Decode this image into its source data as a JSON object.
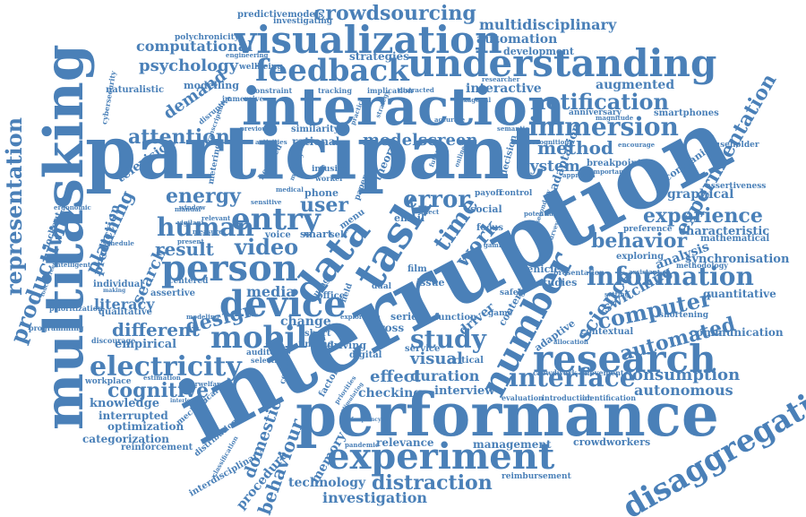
{
  "colors": {
    "word": "#4a80b8",
    "background": "#ffffff"
  },
  "words": [
    "interruption",
    "participant",
    "performance",
    "multitasking",
    "interaction",
    "understanding",
    "visualization",
    "experiment",
    "research",
    "number",
    "device",
    "person",
    "data",
    "task",
    "feedback",
    "crowdsourcing",
    "immersion",
    "information",
    "electricity",
    "mobile",
    "disaggregation",
    "experimentation",
    "representation",
    "productivity",
    "planning",
    "energy",
    "human",
    "entry",
    "error",
    "user",
    "time",
    "work",
    "attention",
    "method",
    "system",
    "notification",
    "behavior",
    "experience",
    "interface",
    "computer",
    "automated",
    "study",
    "design",
    "result",
    "video",
    "cognitive",
    "distraction",
    "technology",
    "investigation",
    "behaviour",
    "domestic",
    "procedure",
    "consumption",
    "autonomous",
    "psychology",
    "computational",
    "modelscreen",
    "automation",
    "multidisciplinary",
    "predictivemodels",
    "polychronicity",
    "investigating",
    "augmented",
    "development",
    "interactive",
    "analysis",
    "synchronisation",
    "characteristic",
    "quantitative",
    "communication",
    "science",
    "switching",
    "visual",
    "effect",
    "duration",
    "interview",
    "checking",
    "memory",
    "management",
    "relevance",
    "crowdworkers",
    "reimbursement",
    "categorization",
    "optimization",
    "interrupted",
    "knowledge",
    "empirical",
    "different",
    "literacy",
    "search",
    "media",
    "change",
    "short",
    "driving",
    "finding",
    "interdisciplinary",
    "television",
    "demand",
    "naturalistic",
    "modelling",
    "strategies",
    "wellbeing",
    "engineering",
    "similarity",
    "rational",
    "smartphones",
    "anniversary",
    "graphical",
    "companion",
    "assertiveness",
    "exploring",
    "presentation",
    "preference",
    "vehicle",
    "studies",
    "social",
    "email",
    "smart",
    "voice",
    "phone",
    "mechanical",
    "reinforcement",
    "workplace",
    "prediction",
    "individual",
    "qualitative",
    "assertive",
    "centered",
    "prioritization",
    "programming",
    "discourage",
    "modeling",
    "self",
    "series",
    "cross",
    "digital",
    "service",
    "critical",
    "driver",
    "content",
    "adaptive",
    "contextual",
    "shortening",
    "mathematical",
    "methodology",
    "householder",
    "crowdwork",
    "movement",
    "introduction",
    "identification",
    "evaluation",
    "function",
    "game",
    "film",
    "menu",
    "usage",
    "office",
    "issue",
    "focus",
    "control",
    "payoff",
    "dual",
    "field",
    "factor",
    "concern",
    "selection",
    "auditory",
    "priorities",
    "stimulating",
    "frequency",
    "pandemic",
    "distribution",
    "classification",
    "cybersecurity",
    "transcription",
    "disruptive",
    "immersive",
    "constraint",
    "implication",
    "tracking",
    "researcher",
    "hexagonal",
    "distracted",
    "magnitude",
    "recognition",
    "encourage",
    "breakpoint",
    "important",
    "adaptation",
    "decision",
    "strategy",
    "accurate",
    "semantic",
    "practice",
    "activities",
    "previous",
    "approach",
    "measure",
    "manual",
    "metering",
    "infusion",
    "worker",
    "mobility",
    "bounded",
    "medical",
    "sensitive",
    "relevant",
    "present",
    "making",
    "intelligent",
    "ergonomic",
    "touchscreen",
    "interlocking",
    "cyberwelfare",
    "estimation",
    "exploration",
    "gaming",
    "safety",
    "affect",
    "theory",
    "paper",
    "future",
    "online",
    "setting",
    "allocation",
    "assistant",
    "secondary",
    "survey",
    "potential",
    "window",
    "vigilant",
    "schedule",
    "lockout",
    "experimental"
  ]
}
